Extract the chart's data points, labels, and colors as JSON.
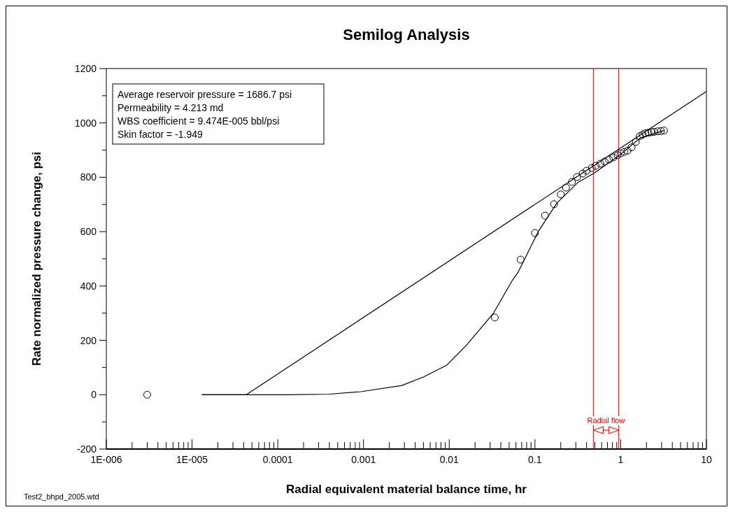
{
  "chart_data": {
    "type": "scatter",
    "title": "Semilog Analysis",
    "xlabel": "Radial equivalent material balance time, hr",
    "ylabel": "Rate normalized pressure change, psi",
    "log": "x",
    "marker": "circle",
    "xlim": [
      1e-06,
      10
    ],
    "ylim": [
      -200,
      1200
    ],
    "xticks": [
      {
        "value": 1e-06,
        "label": "1E-006"
      },
      {
        "value": 2e-06,
        "label": null
      },
      {
        "value": 3e-06,
        "label": null
      },
      {
        "value": 4e-06,
        "label": null
      },
      {
        "value": 5e-06,
        "label": null
      },
      {
        "value": 6e-06,
        "label": null
      },
      {
        "value": 7e-06,
        "label": null
      },
      {
        "value": 8e-06,
        "label": null
      },
      {
        "value": 9e-06,
        "label": null
      },
      {
        "value": 1e-05,
        "label": "1E-005"
      },
      {
        "value": 2e-05,
        "label": null
      },
      {
        "value": 3e-05,
        "label": null
      },
      {
        "value": 4e-05,
        "label": null
      },
      {
        "value": 5e-05,
        "label": null
      },
      {
        "value": 6e-05,
        "label": null
      },
      {
        "value": 7e-05,
        "label": null
      },
      {
        "value": 8e-05,
        "label": null
      },
      {
        "value": 9e-05,
        "label": null
      },
      0.0001,
      {
        "value": 0.0002,
        "label": null
      },
      {
        "value": 0.0003,
        "label": null
      },
      {
        "value": 0.0004,
        "label": null
      },
      {
        "value": 0.0005,
        "label": null
      },
      {
        "value": 0.0006,
        "label": null
      },
      {
        "value": 0.0007,
        "label": null
      },
      {
        "value": 0.0008,
        "label": null
      },
      {
        "value": 0.0009,
        "label": null
      },
      0.001,
      {
        "value": 0.002,
        "label": null
      },
      {
        "value": 0.003,
        "label": null
      },
      {
        "value": 0.004,
        "label": null
      },
      {
        "value": 0.005,
        "label": null
      },
      {
        "value": 0.006,
        "label": null
      },
      {
        "value": 0.007,
        "label": null
      },
      {
        "value": 0.008,
        "label": null
      },
      {
        "value": 0.009,
        "label": null
      },
      0.01,
      {
        "value": 0.02,
        "label": null
      },
      {
        "value": 0.03,
        "label": null
      },
      {
        "value": 0.04,
        "label": null
      },
      {
        "value": 0.05,
        "label": null
      },
      {
        "value": 0.06,
        "label": null
      },
      {
        "value": 0.07,
        "label": null
      },
      {
        "value": 0.08,
        "label": null
      },
      {
        "value": 0.09,
        "label": null
      },
      0.1,
      {
        "value": 0.2,
        "label": null
      },
      {
        "value": 0.3,
        "label": null
      },
      {
        "value": 0.4,
        "label": null
      },
      {
        "value": 0.5,
        "label": null
      },
      {
        "value": 0.6,
        "label": null
      },
      {
        "value": 0.7,
        "label": null
      },
      {
        "value": 0.8,
        "label": null
      },
      {
        "value": 0.9,
        "label": null
      },
      1,
      {
        "value": 2,
        "label": null
      },
      {
        "value": 3,
        "label": null
      },
      {
        "value": 4,
        "label": null
      },
      {
        "value": 5,
        "label": null
      },
      {
        "value": 6,
        "label": null
      },
      {
        "value": 7,
        "label": null
      },
      {
        "value": 8,
        "label": null
      },
      {
        "value": 9,
        "label": null
      },
      10
    ],
    "yticks": [
      -200,
      {
        "value": -100,
        "label": null
      },
      0,
      {
        "value": 100,
        "label": null
      },
      200,
      {
        "value": 300,
        "label": null
      },
      400,
      {
        "value": 500,
        "label": null
      },
      600,
      {
        "value": 700,
        "label": null
      },
      800,
      {
        "value": 900,
        "label": null
      },
      1000,
      {
        "value": 1100,
        "label": null
      },
      1200
    ],
    "series": [
      {
        "type": "line",
        "color": "#000000",
        "line_style": "solid",
        "marker": "none",
        "x": [
          1.3e-05,
          0.00013,
          0.0004,
          0.00093,
          0.0028,
          0.005,
          0.0093,
          0.016,
          0.033,
          0.054,
          0.063,
          0.11,
          0.18,
          0.32,
          0.49,
          0.96,
          1.7,
          3.2
        ],
        "values": [
          0,
          0,
          2,
          11,
          34,
          65,
          108,
          183,
          301,
          419,
          448,
          602,
          705,
          782,
          815,
          880,
          945,
          972
        ]
      },
      {
        "type": "line",
        "color": "#000000",
        "line_style": "solid",
        "marker": "none",
        "x": [
          1.3e-05,
          4.3e-05,
          10
        ],
        "values": [
          0,
          0,
          1116
        ]
      },
      {
        "color": "#000000",
        "x": [
          3e-06,
          0.034,
          0.068,
          0.1,
          0.131,
          0.167,
          0.2,
          0.23,
          0.27,
          0.31,
          0.36,
          0.4,
          0.46,
          0.51,
          0.58,
          0.65,
          0.73,
          0.82,
          0.92,
          1.0,
          1.1,
          1.2,
          1.34,
          1.5,
          1.67,
          1.8,
          1.93,
          2.1,
          2.3,
          2.45,
          2.7,
          2.95,
          3.2
        ],
        "values": [
          0,
          284,
          497,
          595,
          659,
          701,
          737,
          762,
          783,
          801,
          814,
          824,
          834,
          842,
          850,
          858,
          865,
          873,
          881,
          888,
          893,
          898,
          910,
          930,
          951,
          957,
          962,
          964,
          966,
          967,
          969,
          970,
          972
        ]
      }
    ],
    "ref_lines": [
      {
        "axis": "x",
        "value": 0.48,
        "color": "#cc0000"
      },
      {
        "axis": "x",
        "value": 0.95,
        "color": "#cc0000"
      }
    ],
    "annotations": [
      "Average reservoir pressure = 1686.7 psi\nPermeability = 4.213 md\nWBS coefficient = 9.474E-005 bbl/psi\nSkin factor = -1.949",
      "Test2_bhpd_2005.wtd",
      "Radial flow"
    ]
  }
}
